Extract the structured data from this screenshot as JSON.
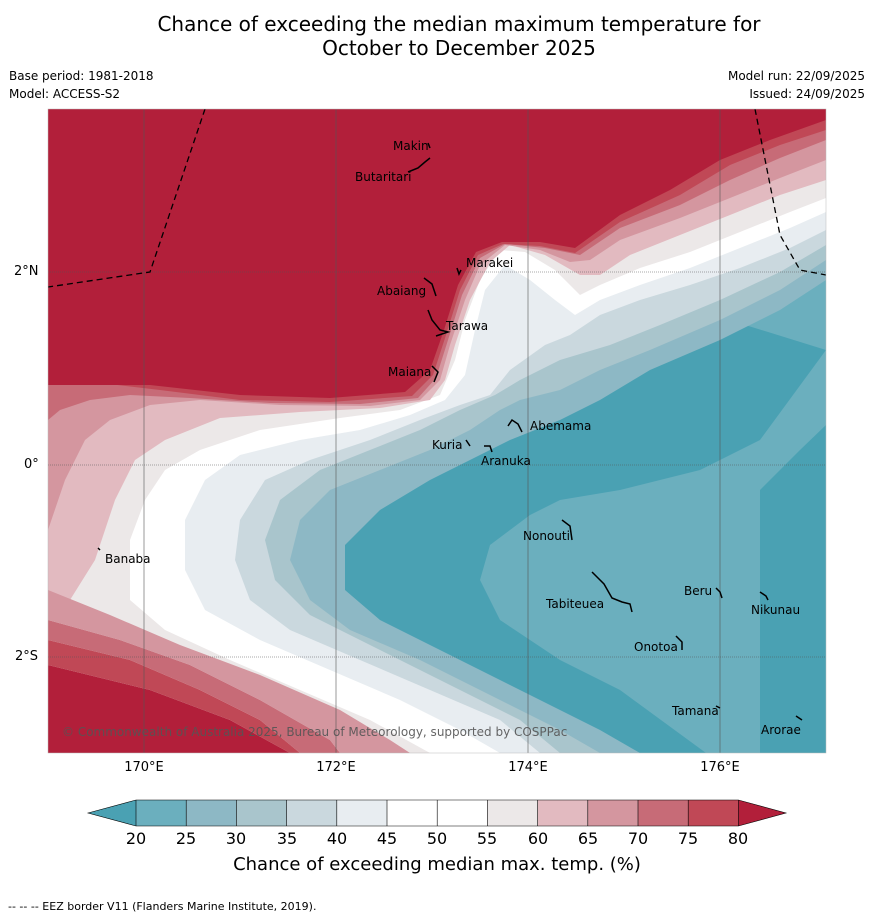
{
  "title_line1": "Chance of exceeding the median maximum temperature for",
  "title_line2": "October to December 2025",
  "meta": {
    "base_period": "Base period: 1981-2018",
    "model": "Model: ACCESS-S2",
    "model_run": "Model run: 22/09/2025",
    "issued": "Issued: 24/09/2025"
  },
  "axes": {
    "lat_labels": [
      "2°N",
      "0°",
      "2°S"
    ],
    "lon_labels": [
      "170°E",
      "172°E",
      "174°E",
      "176°E"
    ]
  },
  "places": [
    "Makin",
    "Butaritari",
    "Marakei",
    "Abaiang",
    "Tarawa",
    "Maiana",
    "Abemama",
    "Kuria",
    "Aranuka",
    "Banaba",
    "Nonouti",
    "Beru",
    "Tabiteuea",
    "Nikunau",
    "Onotoa",
    "Tamana",
    "Arorae"
  ],
  "copyright": "© Commonwealth of Australia 2025, Bureau of Meteorology, supported by COSPPac",
  "colorbar": {
    "ticks": [
      "20",
      "25",
      "30",
      "35",
      "40",
      "45",
      "50",
      "55",
      "60",
      "65",
      "70",
      "75",
      "80"
    ],
    "label": "Chance of exceeding median max. temp. (%)",
    "colors": {
      "below20": "#4aa1b3",
      "b20_25": "#6bafbe",
      "b25_30": "#8db8c5",
      "b30_35": "#a9c5cc",
      "b35_40": "#cad8de",
      "b40_45": "#e8edf1",
      "b45_55": "#ffffff",
      "b55_60": "#ece8e8",
      "b60_65": "#e2bac0",
      "b65_70": "#d4969f",
      "b70_75": "#c76b77",
      "b75_80": "#c04856",
      "above80": "#b21f3a"
    }
  },
  "footer": "--  --  -- EEZ border V11 (Flanders Marine Institute, 2019)."
}
